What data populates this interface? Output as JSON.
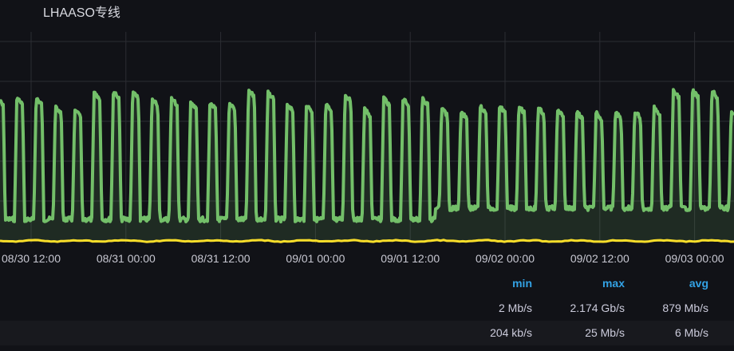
{
  "panel": {
    "title": "LHAASO专线"
  },
  "x_axis": {
    "ticks": [
      "08/30 12:00",
      "08/31 00:00",
      "08/31 12:00",
      "09/01 00:00",
      "09/01 12:00",
      "09/02 00:00",
      "09/02 12:00",
      "09/03 00:00"
    ]
  },
  "series_colors": {
    "inbound": "#73bf69",
    "outbound": "#fade2a"
  },
  "legend": {
    "headers": {
      "min": "min",
      "max": "max",
      "avg": "avg"
    },
    "rows": [
      {
        "min": "2 Mb/s",
        "max": "2.174 Gb/s",
        "avg": "879 Mb/s",
        "color": "#73bf69"
      },
      {
        "min": "204 kb/s",
        "max": "25 Mb/s",
        "avg": "6 Mb/s",
        "color": "#fade2a"
      }
    ]
  }
}
